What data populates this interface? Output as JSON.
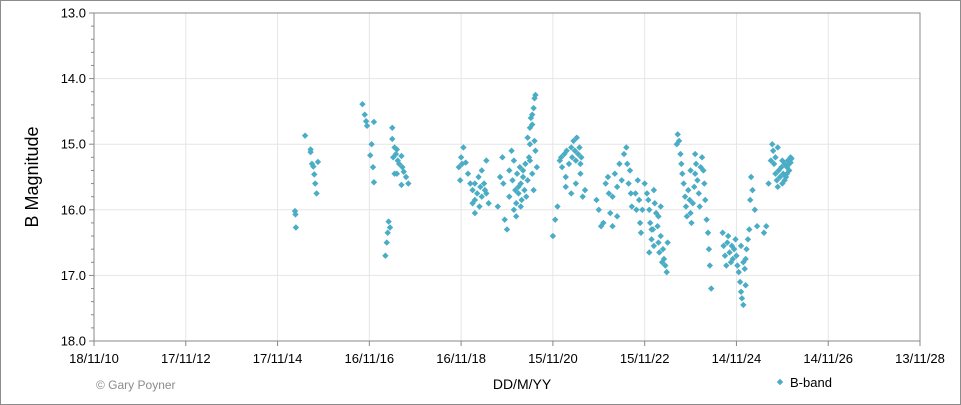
{
  "chart_data": {
    "type": "scatter",
    "title": "",
    "xlabel": "DD/M/YY",
    "ylabel": "B Magnitude",
    "y_inverted": true,
    "ylim": [
      13.0,
      18.0
    ],
    "y_ticks": [
      "13.0",
      "14.0",
      "15.0",
      "16.0",
      "17.0",
      "18.0"
    ],
    "x_ticks": [
      "18/11/10",
      "17/11/12",
      "17/11/14",
      "16/11/16",
      "16/11/18",
      "15/11/20",
      "15/11/22",
      "14/11/24",
      "14/11/26",
      "13/11/28"
    ],
    "grid": true,
    "legend_position": "bottom-right",
    "copyright": "© Gary Poyner",
    "marker_color": "#4bacc6",
    "series": [
      {
        "name": "B-band",
        "points_note": "x = years after 18/11/10 (approx.), y = B magnitude",
        "points": [
          [
            4.38,
            16.02
          ],
          [
            4.39,
            16.07
          ],
          [
            4.4,
            16.27
          ],
          [
            4.6,
            14.87
          ],
          [
            4.72,
            15.08
          ],
          [
            4.75,
            15.3
          ],
          [
            4.78,
            15.34
          ],
          [
            4.8,
            15.46
          ],
          [
            4.82,
            15.6
          ],
          [
            4.85,
            15.75
          ],
          [
            4.72,
            15.12
          ],
          [
            4.88,
            15.27
          ],
          [
            5.85,
            14.39
          ],
          [
            5.9,
            14.55
          ],
          [
            5.93,
            14.65
          ],
          [
            5.95,
            14.72
          ],
          [
            6.1,
            14.66
          ],
          [
            6.05,
            15.0
          ],
          [
            6.02,
            15.17
          ],
          [
            6.08,
            15.35
          ],
          [
            6.1,
            15.58
          ],
          [
            6.35,
            16.7
          ],
          [
            6.38,
            16.5
          ],
          [
            6.4,
            16.35
          ],
          [
            6.42,
            16.18
          ],
          [
            6.45,
            16.27
          ],
          [
            6.5,
            14.75
          ],
          [
            6.5,
            14.92
          ],
          [
            6.55,
            15.05
          ],
          [
            6.58,
            15.15
          ],
          [
            6.62,
            15.25
          ],
          [
            6.6,
            15.08
          ],
          [
            6.65,
            15.3
          ],
          [
            6.52,
            15.2
          ],
          [
            6.55,
            15.45
          ],
          [
            6.7,
            15.18
          ],
          [
            6.72,
            15.35
          ],
          [
            6.75,
            15.42
          ],
          [
            6.8,
            15.5
          ],
          [
            6.85,
            15.6
          ],
          [
            6.6,
            15.45
          ],
          [
            6.7,
            15.62
          ],
          [
            7.95,
            15.35
          ],
          [
            7.98,
            15.55
          ],
          [
            8.0,
            15.2
          ],
          [
            8.02,
            15.3
          ],
          [
            8.05,
            15.05
          ],
          [
            8.1,
            15.28
          ],
          [
            8.15,
            15.45
          ],
          [
            8.2,
            15.6
          ],
          [
            8.25,
            15.7
          ],
          [
            8.3,
            15.85
          ],
          [
            8.3,
            15.6
          ],
          [
            8.35,
            15.75
          ],
          [
            8.38,
            15.5
          ],
          [
            8.42,
            15.65
          ],
          [
            8.45,
            15.8
          ],
          [
            8.5,
            15.6
          ],
          [
            8.52,
            15.7
          ],
          [
            8.25,
            15.9
          ],
          [
            8.3,
            16.05
          ],
          [
            8.4,
            15.95
          ],
          [
            8.45,
            15.4
          ],
          [
            8.55,
            15.25
          ],
          [
            8.55,
            15.75
          ],
          [
            8.6,
            15.9
          ],
          [
            8.8,
            15.95
          ],
          [
            8.85,
            15.5
          ],
          [
            8.9,
            15.2
          ],
          [
            8.92,
            15.6
          ],
          [
            8.95,
            16.15
          ],
          [
            9.0,
            16.3
          ],
          [
            9.05,
            15.8
          ],
          [
            9.05,
            15.4
          ],
          [
            9.1,
            15.1
          ],
          [
            9.12,
            15.55
          ],
          [
            9.15,
            15.25
          ],
          [
            9.18,
            15.7
          ],
          [
            9.2,
            15.9
          ],
          [
            9.22,
            15.45
          ],
          [
            9.25,
            15.75
          ],
          [
            9.28,
            15.35
          ],
          [
            9.3,
            15.6
          ],
          [
            9.32,
            15.85
          ],
          [
            9.35,
            15.5
          ],
          [
            9.38,
            15.7
          ],
          [
            9.4,
            15.3
          ],
          [
            9.42,
            15.8
          ],
          [
            9.45,
            15.55
          ],
          [
            9.48,
            15.2
          ],
          [
            9.15,
            16.0
          ],
          [
            9.2,
            16.1
          ],
          [
            9.25,
            15.65
          ],
          [
            9.3,
            15.95
          ],
          [
            9.35,
            15.4
          ],
          [
            9.45,
            14.9
          ],
          [
            9.5,
            15.0
          ],
          [
            9.5,
            14.75
          ],
          [
            9.52,
            14.6
          ],
          [
            9.55,
            14.55
          ],
          [
            9.58,
            14.45
          ],
          [
            9.6,
            14.3
          ],
          [
            9.62,
            14.25
          ],
          [
            9.55,
            14.7
          ],
          [
            9.6,
            14.95
          ],
          [
            9.62,
            15.1
          ],
          [
            9.65,
            15.35
          ],
          [
            9.5,
            15.25
          ],
          [
            9.55,
            15.45
          ],
          [
            9.58,
            15.7
          ],
          [
            10.0,
            16.4
          ],
          [
            10.05,
            16.15
          ],
          [
            10.1,
            15.95
          ],
          [
            10.15,
            15.25
          ],
          [
            10.18,
            15.2
          ],
          [
            10.2,
            15.35
          ],
          [
            10.25,
            15.15
          ],
          [
            10.28,
            15.5
          ],
          [
            10.3,
            15.1
          ],
          [
            10.35,
            15.3
          ],
          [
            10.4,
            15.05
          ],
          [
            10.42,
            15.2
          ],
          [
            10.45,
            14.95
          ],
          [
            10.48,
            15.1
          ],
          [
            10.5,
            15.25
          ],
          [
            10.52,
            14.9
          ],
          [
            10.55,
            15.15
          ],
          [
            10.58,
            15.05
          ],
          [
            10.6,
            15.3
          ],
          [
            10.62,
            15.2
          ],
          [
            10.28,
            15.65
          ],
          [
            10.4,
            15.75
          ],
          [
            10.5,
            15.6
          ],
          [
            10.6,
            15.45
          ],
          [
            10.65,
            15.8
          ],
          [
            10.7,
            15.7
          ],
          [
            10.95,
            15.85
          ],
          [
            11.0,
            16.0
          ],
          [
            11.05,
            16.25
          ],
          [
            11.1,
            16.2
          ],
          [
            11.15,
            15.6
          ],
          [
            11.2,
            15.5
          ],
          [
            11.22,
            15.75
          ],
          [
            11.25,
            16.05
          ],
          [
            11.3,
            16.25
          ],
          [
            11.35,
            15.45
          ],
          [
            11.4,
            15.65
          ],
          [
            11.45,
            15.3
          ],
          [
            11.5,
            15.55
          ],
          [
            11.55,
            15.15
          ],
          [
            11.6,
            15.05
          ],
          [
            11.62,
            15.3
          ],
          [
            11.65,
            15.6
          ],
          [
            11.68,
            15.4
          ],
          [
            11.7,
            15.75
          ],
          [
            11.72,
            15.95
          ],
          [
            11.3,
            15.8
          ],
          [
            11.4,
            16.1
          ],
          [
            11.8,
            15.75
          ],
          [
            11.82,
            16.0
          ],
          [
            11.85,
            15.55
          ],
          [
            11.88,
            15.85
          ],
          [
            11.9,
            16.2
          ],
          [
            11.92,
            16.35
          ],
          [
            11.95,
            16.0
          ],
          [
            12.0,
            15.6
          ],
          [
            12.05,
            15.75
          ],
          [
            12.08,
            15.85
          ],
          [
            12.1,
            16.0
          ],
          [
            12.12,
            16.2
          ],
          [
            12.15,
            16.45
          ],
          [
            12.18,
            16.3
          ],
          [
            12.2,
            15.7
          ],
          [
            12.22,
            15.9
          ],
          [
            12.25,
            16.05
          ],
          [
            12.28,
            16.25
          ],
          [
            12.3,
            16.5
          ],
          [
            12.32,
            16.65
          ],
          [
            12.35,
            16.4
          ],
          [
            12.38,
            16.8
          ],
          [
            12.4,
            16.6
          ],
          [
            12.42,
            16.75
          ],
          [
            12.45,
            16.85
          ],
          [
            12.48,
            16.95
          ],
          [
            12.5,
            16.5
          ],
          [
            12.3,
            16.1
          ],
          [
            12.35,
            15.95
          ],
          [
            12.1,
            16.65
          ],
          [
            12.15,
            16.3
          ],
          [
            12.2,
            16.55
          ],
          [
            12.7,
            15.0
          ],
          [
            12.72,
            14.85
          ],
          [
            12.75,
            14.95
          ],
          [
            12.78,
            15.15
          ],
          [
            12.8,
            15.3
          ],
          [
            12.82,
            15.45
          ],
          [
            12.85,
            15.6
          ],
          [
            12.88,
            15.8
          ],
          [
            12.9,
            15.95
          ],
          [
            12.92,
            16.1
          ],
          [
            12.95,
            15.7
          ],
          [
            12.98,
            15.85
          ],
          [
            13.0,
            16.05
          ],
          [
            13.02,
            16.2
          ],
          [
            13.05,
            15.9
          ],
          [
            13.08,
            15.65
          ],
          [
            13.1,
            15.45
          ],
          [
            13.12,
            15.3
          ],
          [
            13.15,
            15.55
          ],
          [
            13.18,
            15.75
          ],
          [
            13.2,
            15.95
          ],
          [
            13.22,
            15.35
          ],
          [
            13.25,
            15.2
          ],
          [
            13.28,
            15.4
          ],
          [
            13.3,
            15.6
          ],
          [
            13.32,
            15.85
          ],
          [
            13.35,
            16.15
          ],
          [
            13.38,
            16.35
          ],
          [
            13.4,
            16.6
          ],
          [
            13.42,
            16.85
          ],
          [
            13.45,
            17.2
          ],
          [
            13.0,
            15.4
          ],
          [
            13.1,
            15.15
          ],
          [
            13.7,
            16.35
          ],
          [
            13.72,
            16.55
          ],
          [
            13.75,
            16.7
          ],
          [
            13.78,
            16.85
          ],
          [
            13.8,
            16.5
          ],
          [
            13.82,
            16.4
          ],
          [
            13.85,
            16.65
          ],
          [
            13.88,
            16.8
          ],
          [
            13.9,
            16.55
          ],
          [
            13.92,
            16.75
          ],
          [
            13.95,
            16.6
          ],
          [
            13.98,
            16.45
          ],
          [
            14.0,
            16.7
          ],
          [
            14.02,
            16.85
          ],
          [
            14.05,
            16.95
          ],
          [
            14.08,
            17.1
          ],
          [
            14.1,
            17.25
          ],
          [
            14.12,
            17.35
          ],
          [
            14.15,
            17.45
          ],
          [
            14.18,
            16.9
          ],
          [
            14.2,
            16.75
          ],
          [
            14.22,
            16.6
          ],
          [
            14.25,
            16.45
          ],
          [
            14.28,
            16.3
          ],
          [
            14.3,
            15.85
          ],
          [
            14.32,
            15.5
          ],
          [
            14.35,
            15.7
          ],
          [
            14.4,
            16.0
          ],
          [
            14.45,
            16.25
          ],
          [
            14.1,
            16.55
          ],
          [
            14.15,
            16.8
          ],
          [
            14.2,
            17.15
          ],
          [
            14.6,
            16.35
          ],
          [
            14.65,
            16.25
          ],
          [
            14.7,
            15.6
          ],
          [
            14.75,
            15.25
          ],
          [
            14.78,
            15.0
          ],
          [
            14.8,
            15.1
          ],
          [
            14.82,
            15.3
          ],
          [
            14.85,
            15.45
          ],
          [
            14.88,
            15.55
          ],
          [
            14.9,
            15.65
          ],
          [
            14.92,
            15.4
          ],
          [
            14.95,
            15.5
          ],
          [
            14.98,
            15.35
          ],
          [
            15.0,
            15.6
          ],
          [
            15.02,
            15.45
          ],
          [
            15.05,
            15.3
          ],
          [
            15.08,
            15.5
          ],
          [
            15.1,
            15.35
          ],
          [
            15.12,
            15.25
          ],
          [
            15.15,
            15.4
          ],
          [
            15.18,
            15.28
          ],
          [
            15.2,
            15.22
          ],
          [
            14.85,
            15.2
          ],
          [
            14.9,
            15.05
          ],
          [
            15.0,
            15.25
          ],
          [
            15.05,
            15.55
          ],
          [
            15.1,
            15.45
          ],
          [
            15.15,
            15.3
          ],
          [
            15.18,
            15.2
          ]
        ]
      }
    ]
  }
}
